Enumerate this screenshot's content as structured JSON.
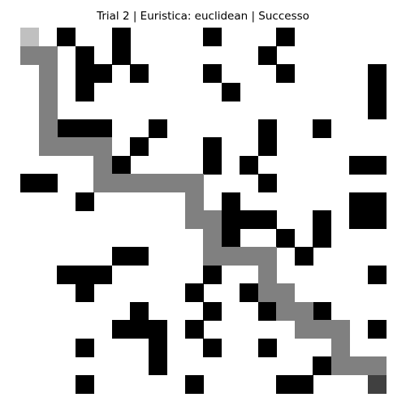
{
  "title": "Trial 2 | Euristica: euclidean | Successo",
  "grid": {
    "rows": 20,
    "cols": 20,
    "colors": {
      "free": "#ffffff",
      "obstacle": "#000000",
      "path": "#808080",
      "start": "#c0c0c0",
      "goal": "#404040"
    },
    "start": [
      0,
      0
    ],
    "goal": [
      19,
      19
    ],
    "obstacles": [
      [
        0,
        2
      ],
      [
        0,
        5
      ],
      [
        0,
        10
      ],
      [
        0,
        14
      ],
      [
        1,
        3
      ],
      [
        1,
        5
      ],
      [
        1,
        13
      ],
      [
        2,
        3
      ],
      [
        2,
        4
      ],
      [
        2,
        6
      ],
      [
        2,
        10
      ],
      [
        2,
        14
      ],
      [
        2,
        19
      ],
      [
        3,
        3
      ],
      [
        3,
        11
      ],
      [
        3,
        19
      ],
      [
        4,
        19
      ],
      [
        5,
        2
      ],
      [
        5,
        3
      ],
      [
        5,
        4
      ],
      [
        5,
        7
      ],
      [
        5,
        13
      ],
      [
        5,
        16
      ],
      [
        6,
        6
      ],
      [
        6,
        10
      ],
      [
        6,
        13
      ],
      [
        7,
        5
      ],
      [
        7,
        10
      ],
      [
        7,
        12
      ],
      [
        7,
        18
      ],
      [
        7,
        19
      ],
      [
        8,
        0
      ],
      [
        8,
        1
      ],
      [
        8,
        13
      ],
      [
        9,
        3
      ],
      [
        9,
        11
      ],
      [
        9,
        18
      ],
      [
        9,
        19
      ],
      [
        10,
        11
      ],
      [
        10,
        12
      ],
      [
        10,
        13
      ],
      [
        10,
        16
      ],
      [
        10,
        18
      ],
      [
        10,
        19
      ],
      [
        11,
        11
      ],
      [
        11,
        14
      ],
      [
        11,
        16
      ],
      [
        12,
        5
      ],
      [
        12,
        6
      ],
      [
        12,
        15
      ],
      [
        13,
        2
      ],
      [
        13,
        3
      ],
      [
        13,
        4
      ],
      [
        13,
        10
      ],
      [
        13,
        19
      ],
      [
        14,
        3
      ],
      [
        14,
        9
      ],
      [
        14,
        12
      ],
      [
        15,
        6
      ],
      [
        15,
        10
      ],
      [
        15,
        13
      ],
      [
        15,
        16
      ],
      [
        16,
        5
      ],
      [
        16,
        6
      ],
      [
        16,
        7
      ],
      [
        16,
        9
      ],
      [
        16,
        19
      ],
      [
        17,
        3
      ],
      [
        17,
        7
      ],
      [
        17,
        10
      ],
      [
        17,
        13
      ],
      [
        18,
        7
      ],
      [
        18,
        16
      ],
      [
        19,
        3
      ],
      [
        19,
        9
      ],
      [
        19,
        14
      ],
      [
        19,
        15
      ]
    ],
    "path": [
      [
        1,
        0
      ],
      [
        1,
        1
      ],
      [
        2,
        1
      ],
      [
        3,
        1
      ],
      [
        4,
        1
      ],
      [
        5,
        1
      ],
      [
        6,
        1
      ],
      [
        6,
        2
      ],
      [
        6,
        3
      ],
      [
        6,
        4
      ],
      [
        7,
        4
      ],
      [
        8,
        4
      ],
      [
        8,
        5
      ],
      [
        8,
        6
      ],
      [
        8,
        7
      ],
      [
        8,
        8
      ],
      [
        8,
        9
      ],
      [
        9,
        9
      ],
      [
        10,
        9
      ],
      [
        10,
        10
      ],
      [
        11,
        10
      ],
      [
        12,
        10
      ],
      [
        12,
        11
      ],
      [
        12,
        12
      ],
      [
        12,
        13
      ],
      [
        13,
        13
      ],
      [
        14,
        13
      ],
      [
        14,
        14
      ],
      [
        15,
        14
      ],
      [
        15,
        15
      ],
      [
        16,
        15
      ],
      [
        16,
        16
      ],
      [
        16,
        17
      ],
      [
        17,
        17
      ],
      [
        18,
        17
      ],
      [
        18,
        18
      ],
      [
        18,
        19
      ]
    ]
  }
}
